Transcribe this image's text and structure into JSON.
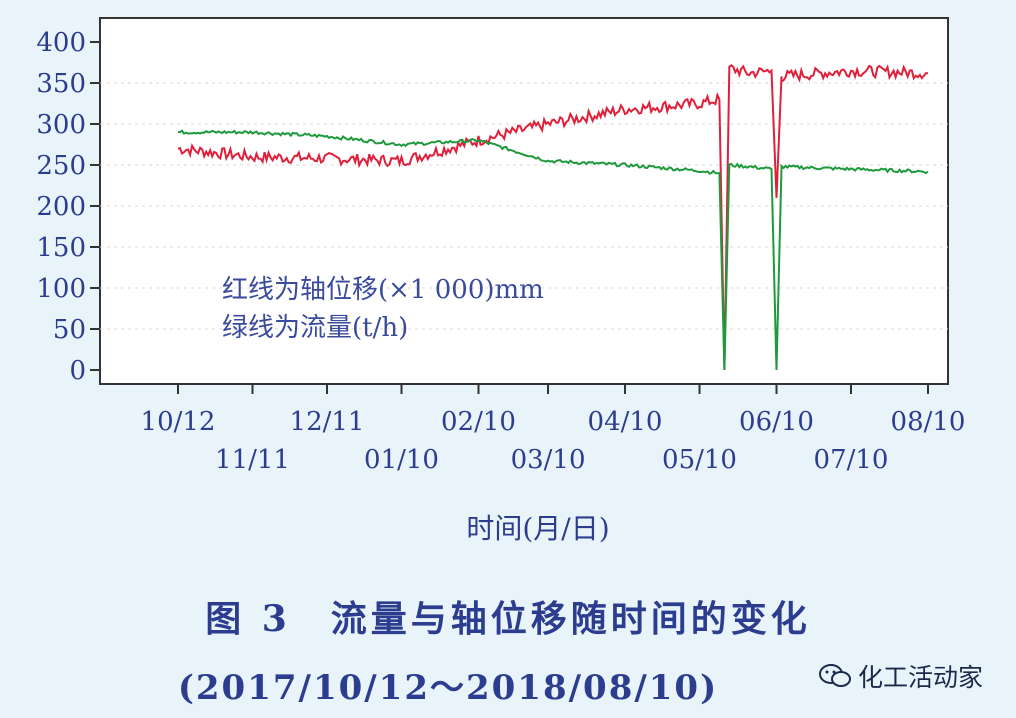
{
  "chart_data": {
    "type": "line",
    "y_axis": {
      "ylim": [
        0,
        410
      ],
      "ticks": [
        "0",
        "50",
        "100",
        "150",
        "200",
        "250",
        "300",
        "350",
        "400"
      ]
    },
    "x_axis": {
      "xlabel": "时间(月/日)",
      "ticks_row1": [
        "10/12",
        "12/11",
        "02/10",
        "04/10",
        "06/10",
        "08/10"
      ],
      "ticks_row2": [
        "11/11",
        "01/10",
        "03/10",
        "05/10",
        "07/10"
      ]
    },
    "legend": [
      "红线为轴位移(×1 000)mm",
      "绿线为流量(t/h)"
    ],
    "series": [
      {
        "color": "#e0203a",
        "x": [
          "10/12",
          "11/11",
          "12/11",
          "01/10",
          "02/10",
          "03/10",
          "04/10",
          "05/10",
          "05/18",
          "05/20",
          "05/22",
          "05/30",
          "06/08",
          "06/10",
          "06/12",
          "07/10",
          "08/10"
        ],
        "values": [
          270,
          260,
          258,
          255,
          280,
          300,
          318,
          325,
          330,
          0,
          368,
          362,
          365,
          210,
          358,
          365,
          362
        ]
      },
      {
        "color": "#1e9a3c",
        "x": [
          "10/12",
          "11/11",
          "12/11",
          "01/10",
          "02/10",
          "03/10",
          "04/10",
          "05/10",
          "05/18",
          "05/20",
          "05/22",
          "05/30",
          "06/08",
          "06/10",
          "06/12",
          "07/10",
          "08/10"
        ],
        "values": [
          290,
          290,
          285,
          275,
          280,
          255,
          250,
          243,
          240,
          0,
          250,
          248,
          245,
          0,
          248,
          245,
          242
        ]
      }
    ]
  },
  "caption": {
    "title": "图 3　流量与轴位移随时间的变化",
    "range": "(2017/10/12～2018/08/10)"
  },
  "brand": {
    "text": "化工活动家",
    "icon": "wechat-icon"
  }
}
